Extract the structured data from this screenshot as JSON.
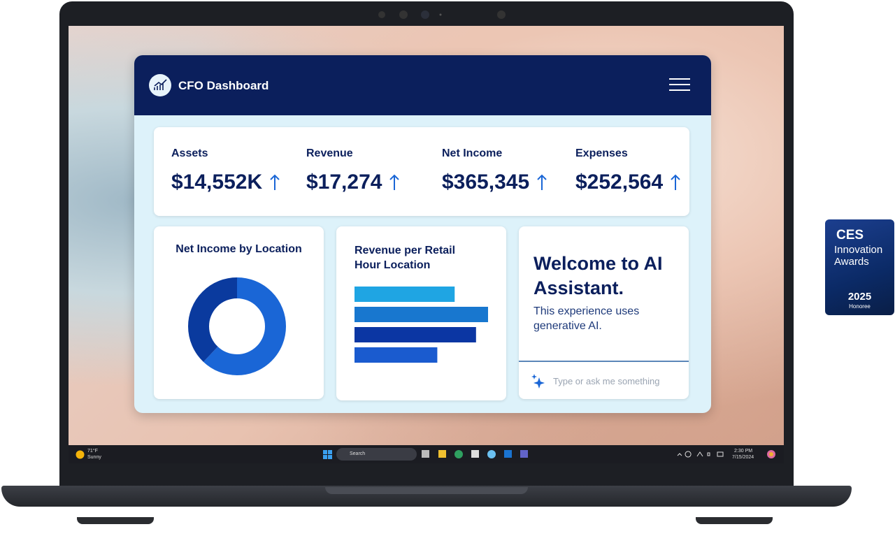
{
  "dashboard": {
    "title": "CFO Dashboard",
    "kpis": [
      {
        "label": "Assets",
        "value": "$14,552K"
      },
      {
        "label": "Revenue",
        "value": "$17,274"
      },
      {
        "label": "Net Income",
        "value": "$365,345"
      },
      {
        "label": "Expenses",
        "value": "$252,564"
      }
    ],
    "donut_card": {
      "title": "Net Income by Location",
      "values": [
        62,
        38
      ],
      "colors": [
        "#1a66d6",
        "#0a3a9e"
      ]
    },
    "bar_card": {
      "title": "Revenue per Retail Hour Location",
      "values": [
        75,
        100,
        91,
        62
      ],
      "colors": [
        "#1fa5e3",
        "#1877cf",
        "#0b36a3",
        "#1a5bcf"
      ]
    },
    "assistant": {
      "title": "Welcome to AI Assistant.",
      "text": "This experience uses generative AI.",
      "placeholder": "Type or ask me something"
    }
  },
  "taskbar": {
    "temperature": "71°F",
    "weather": "Sunny",
    "search": "Search",
    "time": "2:30 PM",
    "date": "7/15/2024"
  },
  "badge": {
    "brand": "CES",
    "line1": "Innovation",
    "line2": "Awards",
    "year": "2025",
    "status": "Honoree"
  }
}
